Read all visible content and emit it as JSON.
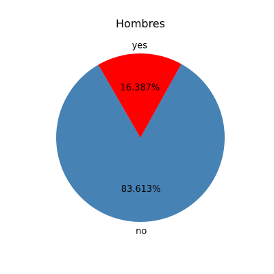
{
  "chart_data": {
    "type": "pie",
    "title": "Hombres",
    "slices": [
      {
        "label": "no",
        "value": 83.613,
        "pct_label": "83.613%",
        "color": "#4682b4"
      },
      {
        "label": "yes",
        "value": 16.387,
        "pct_label": "16.387%",
        "color": "#ff0000"
      }
    ],
    "start_angle_deg": 120,
    "direction": "counterclockwise"
  }
}
